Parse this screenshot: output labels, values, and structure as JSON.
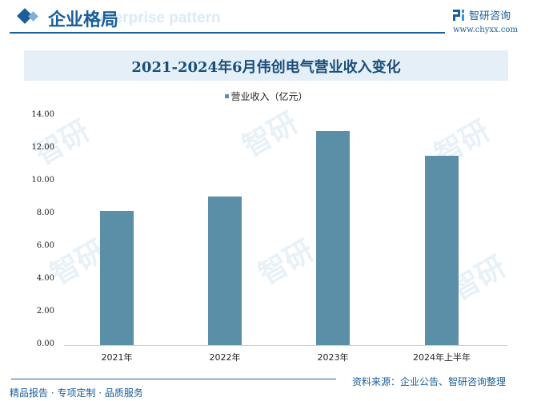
{
  "header": {
    "section_title": "企业格局",
    "section_subtitle": "Enterprise pattern",
    "brand_name": "智研咨询",
    "brand_url": "www.chyxx.com"
  },
  "chart_title": "2021-2024年6月伟创电气营业收入变化",
  "legend": {
    "label": "营业收入（亿元）",
    "color": "#5b8fa8"
  },
  "y_ticks": [
    "14.00",
    "12.00",
    "10.00",
    "8.00",
    "6.00",
    "4.00",
    "2.00",
    "0.00"
  ],
  "x_labels": [
    "2021年",
    "2022年",
    "2023年",
    "2024年上半年"
  ],
  "footer": {
    "source": "资料来源：企业公告、智研咨询整理",
    "slogan": "精品报告 · 专项定制 · 品质服务"
  },
  "colors": {
    "accent": "#1a5e9a",
    "bar": "#5b8fa8",
    "title_band": "#e4eff7"
  },
  "chart_data": {
    "type": "bar",
    "title": "2021-2024年6月伟创电气营业收入变化",
    "categories": [
      "2021年",
      "2022年",
      "2023年",
      "2024年上半年"
    ],
    "series": [
      {
        "name": "营业收入（亿元）",
        "values": [
          8.2,
          9.07,
          13.07,
          11.56
        ]
      }
    ],
    "xlabel": "",
    "ylabel": "营业收入（亿元）",
    "ylim": [
      0,
      14
    ],
    "yticks": [
      0,
      2,
      4,
      6,
      8,
      10,
      12,
      14
    ],
    "grid": false,
    "legend_position": "top"
  }
}
